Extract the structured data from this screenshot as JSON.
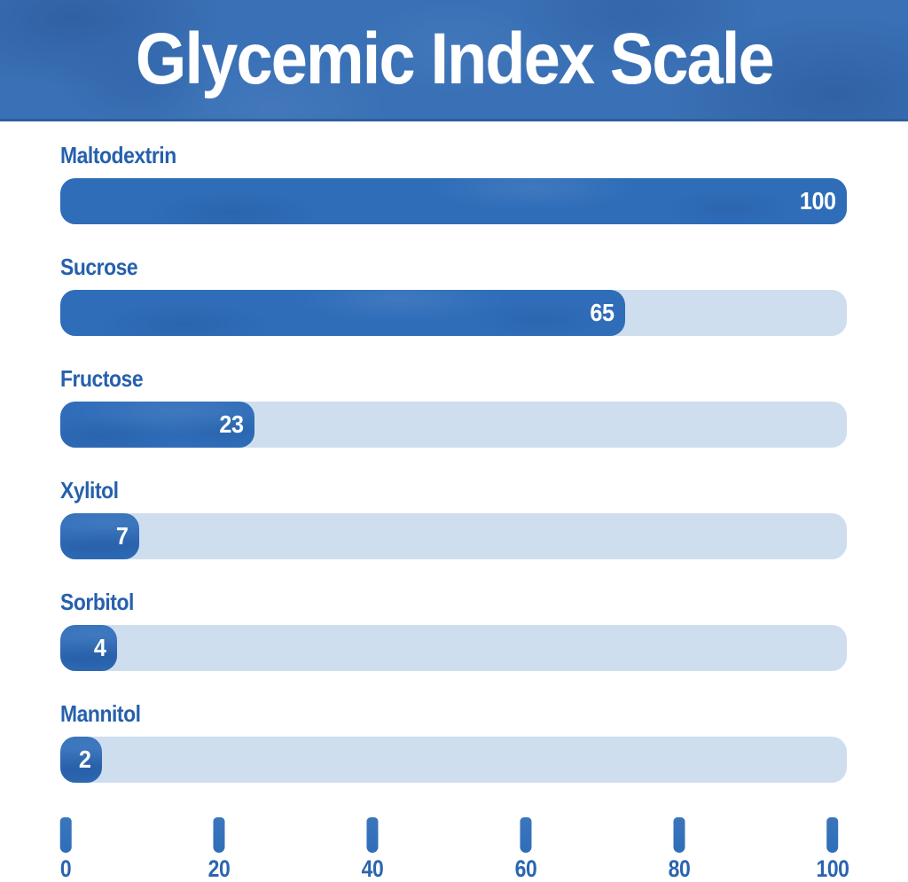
{
  "header": {
    "title": "Glycemic Index Scale"
  },
  "colors": {
    "header_bg": "#3a70b5",
    "header_border": "#2d5f9f",
    "bar_fill": "#2f6db9",
    "bar_track": "#cfdeef",
    "category_text": "#2660ad",
    "value_text": "#ffffff",
    "tick": "#2e6db8",
    "tick_label_text": "#2b65b0",
    "page_bg": "#ffffff"
  },
  "chart_data": {
    "type": "bar",
    "orientation": "horizontal",
    "title": "Glycemic Index Scale",
    "categories": [
      "Maltodextrin",
      "Sucrose",
      "Fructose",
      "Xylitol",
      "Sorbitol",
      "Mannitol"
    ],
    "values": [
      100,
      65,
      23,
      7,
      4,
      2
    ],
    "xlabel": "",
    "ylabel": "",
    "xlim": [
      0,
      100
    ],
    "grid": false,
    "legend": false,
    "items": [
      {
        "label": "Maltodextrin",
        "value": 100,
        "value_label": "100",
        "fill_pct": 100
      },
      {
        "label": "Sucrose",
        "value": 65,
        "value_label": "65",
        "fill_pct": 71.8
      },
      {
        "label": "Fructose",
        "value": 23,
        "value_label": "23",
        "fill_pct": 24.7
      },
      {
        "label": "Xylitol",
        "value": 7,
        "value_label": "7",
        "fill_pct": 10.0
      },
      {
        "label": "Sorbitol",
        "value": 4,
        "value_label": "4",
        "fill_pct": 7.2
      },
      {
        "label": "Mannitol",
        "value": 2,
        "value_label": "2",
        "fill_pct": 5.3
      }
    ],
    "ticks": [
      {
        "label": "0",
        "pct": 0.7
      },
      {
        "label": "20",
        "pct": 20.2
      },
      {
        "label": "40",
        "pct": 39.7
      },
      {
        "label": "60",
        "pct": 59.2
      },
      {
        "label": "80",
        "pct": 78.7
      },
      {
        "label": "100",
        "pct": 98.2
      }
    ]
  }
}
